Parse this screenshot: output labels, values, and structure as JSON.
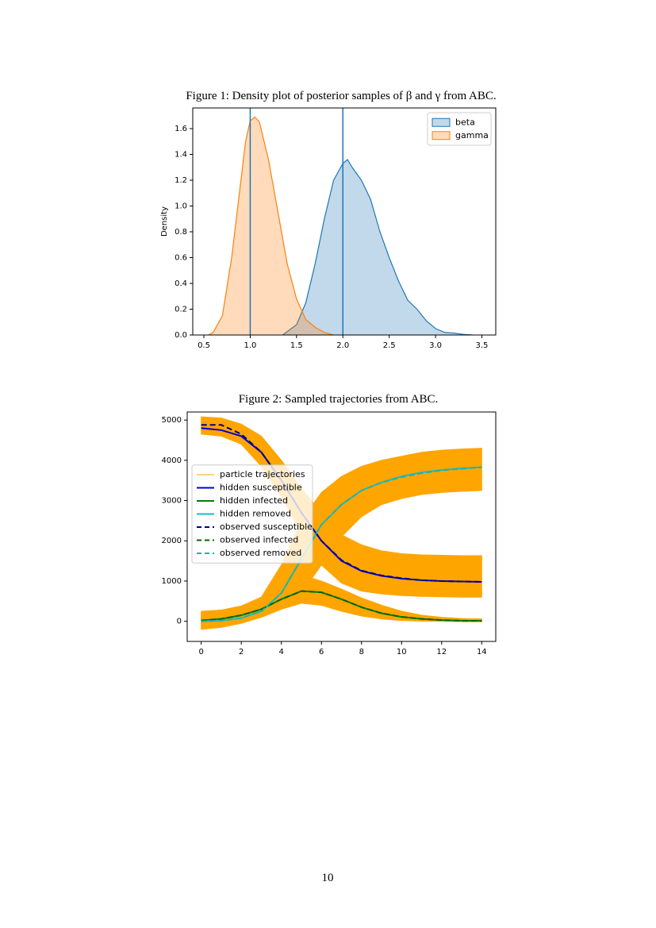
{
  "page_number": "10",
  "chart_data": [
    {
      "type": "area",
      "title": "Figure 1: Density plot of posterior samples of β and γ from ABC.",
      "ylabel": "Density",
      "legend": "upper right",
      "xlim": [
        0.38,
        3.65
      ],
      "ylim": [
        0,
        1.76
      ],
      "xticks": [
        0.5,
        {
          "value": 1,
          "label": "1.0"
        },
        1.5,
        {
          "value": 2,
          "label": "2.0"
        },
        2.5,
        {
          "value": 3,
          "label": "3.0"
        },
        3.5
      ],
      "yticks": [
        {
          "value": 0,
          "label": "0.0"
        },
        0.2,
        0.4,
        0.6,
        0.8,
        {
          "value": 1,
          "label": "1.0"
        },
        1.2,
        1.4,
        1.6
      ],
      "vlines": [
        1,
        2
      ],
      "vline_color": "#1f77b4",
      "series": [
        {
          "name": "beta",
          "color": "#1f77b4",
          "x": [
            1.35,
            1.5,
            1.6,
            1.7,
            1.8,
            1.9,
            2.0,
            2.05,
            2.1,
            2.2,
            2.3,
            2.4,
            2.5,
            2.6,
            2.7,
            2.8,
            2.9,
            3.0,
            3.1,
            3.2,
            3.3,
            3.4
          ],
          "values": [
            0,
            0.08,
            0.25,
            0.55,
            0.9,
            1.2,
            1.33,
            1.36,
            1.3,
            1.2,
            1.05,
            0.8,
            0.6,
            0.42,
            0.27,
            0.2,
            0.11,
            0.05,
            0.02,
            0.015,
            0.005,
            0
          ]
        },
        {
          "name": "gamma",
          "color": "#ff7f0e",
          "x": [
            0.55,
            0.6,
            0.7,
            0.8,
            0.9,
            0.95,
            1.0,
            1.05,
            1.1,
            1.2,
            1.3,
            1.4,
            1.5,
            1.6,
            1.7,
            1.8,
            1.9
          ],
          "values": [
            0,
            0.02,
            0.15,
            0.6,
            1.2,
            1.5,
            1.66,
            1.69,
            1.65,
            1.35,
            0.95,
            0.55,
            0.28,
            0.12,
            0.06,
            0.02,
            0
          ]
        }
      ]
    },
    {
      "type": "line",
      "title": "Figure 2: Sampled trajectories from ABC.",
      "legend": "center left",
      "x": [
        0,
        1,
        2,
        3,
        4,
        5,
        6,
        7,
        8,
        9,
        10,
        11,
        12,
        13,
        14
      ],
      "xlim": [
        -0.7,
        14.7
      ],
      "ylim": [
        -500,
        5200
      ],
      "xticks": [
        0,
        2,
        4,
        6,
        8,
        10,
        12,
        14
      ],
      "yticks": [
        0,
        1000,
        2000,
        3000,
        4000,
        5000
      ],
      "series": [
        {
          "name": "particle trajectories",
          "color": "#ffa500",
          "bands": [
            {
              "low": [
                4650,
                4600,
                4400,
                3850,
                3100,
                2200,
                1400,
                950,
                750,
                680,
                640,
                620,
                610,
                600,
                600
              ],
              "high": [
                5080,
                5050,
                4900,
                4600,
                4000,
                3300,
                2700,
                2150,
                1900,
                1750,
                1680,
                1650,
                1640,
                1630,
                1630
              ]
            },
            {
              "low": [
                -200,
                -150,
                -50,
                100,
                300,
                450,
                400,
                250,
                130,
                60,
                20,
                5,
                0,
                -10,
                -10
              ],
              "high": [
                250,
                280,
                380,
                600,
                950,
                1150,
                1000,
                800,
                580,
                400,
                250,
                150,
                100,
                70,
                60
              ]
            },
            {
              "low": [
                -50,
                -30,
                0,
                100,
                300,
                700,
                1400,
                2100,
                2600,
                2900,
                3050,
                3150,
                3200,
                3230,
                3250
              ],
              "high": [
                150,
                200,
                300,
                600,
                1400,
                2500,
                3200,
                3600,
                3850,
                4000,
                4100,
                4200,
                4250,
                4280,
                4300
              ]
            }
          ]
        },
        {
          "name": "hidden susceptible",
          "color": "#0000cd",
          "linestyle": "solid",
          "values": [
            4800,
            4750,
            4600,
            4200,
            3500,
            2700,
            2000,
            1500,
            1250,
            1130,
            1060,
            1020,
            1000,
            990,
            980
          ]
        },
        {
          "name": "hidden infected",
          "color": "#008000",
          "linestyle": "solid",
          "values": [
            20,
            60,
            150,
            300,
            550,
            750,
            720,
            550,
            350,
            200,
            110,
            60,
            30,
            15,
            10
          ]
        },
        {
          "name": "hidden removed",
          "color": "#17bfbf",
          "linestyle": "solid",
          "values": [
            0,
            20,
            80,
            250,
            700,
            1550,
            2400,
            2900,
            3250,
            3450,
            3600,
            3700,
            3760,
            3800,
            3830
          ]
        },
        {
          "name": "observed susceptible",
          "color": "#00008b",
          "linestyle": "dashed",
          "values": [
            4880,
            4880,
            4650,
            4200,
            3500,
            2700,
            2000,
            1520,
            1260,
            1140,
            1070,
            1020,
            1000,
            990,
            980
          ]
        },
        {
          "name": "observed infected",
          "color": "#006400",
          "linestyle": "dashed",
          "values": [
            20,
            60,
            150,
            300,
            550,
            750,
            720,
            550,
            350,
            200,
            110,
            60,
            30,
            15,
            10
          ]
        },
        {
          "name": "observed removed",
          "color": "#20b2aa",
          "linestyle": "dashed",
          "values": [
            0,
            20,
            80,
            250,
            700,
            1550,
            2400,
            2900,
            3250,
            3450,
            3580,
            3680,
            3750,
            3790,
            3830
          ]
        }
      ]
    }
  ]
}
